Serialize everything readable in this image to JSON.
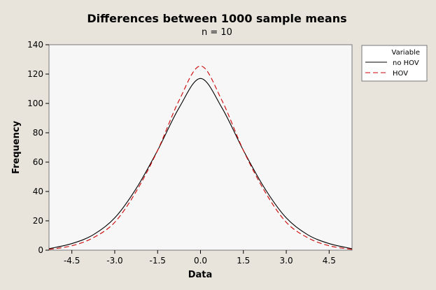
{
  "chart_data": {
    "type": "line",
    "title": "Differences between 1000 sample means",
    "subtitle": "n = 10",
    "xlabel": "Data",
    "ylabel": "Frequency",
    "xlim": [
      -5.3,
      5.3
    ],
    "ylim": [
      0,
      140
    ],
    "x_ticks": [
      -4.5,
      -3.0,
      -1.5,
      0.0,
      1.5,
      3.0,
      4.5
    ],
    "x_tick_labels": [
      "-4.5",
      "-3.0",
      "-1.5",
      "0.0",
      "1.5",
      "3.0",
      "4.5"
    ],
    "y_ticks": [
      0,
      20,
      40,
      60,
      80,
      100,
      120,
      140
    ],
    "y_tick_labels": [
      "0",
      "20",
      "40",
      "60",
      "80",
      "100",
      "120",
      "140"
    ],
    "grid": false,
    "legend": {
      "title": "Variable",
      "placement": "right-top"
    },
    "series": [
      {
        "name": "no HOV",
        "color": "#000000",
        "dash": "solid",
        "x": [
          -5.3,
          -4.5,
          -3.75,
          -3.0,
          -2.25,
          -1.5,
          -0.75,
          0.0,
          0.75,
          1.5,
          2.25,
          3.0,
          3.75,
          4.5,
          5.3
        ],
        "y": [
          1,
          4.5,
          10.5,
          22,
          42,
          68,
          97,
          117,
          97,
          68,
          42,
          22,
          10.5,
          4.5,
          1
        ]
      },
      {
        "name": "HOV",
        "color": "#cc0000",
        "dash": "dashed",
        "x": [
          -5.3,
          -4.5,
          -3.75,
          -3.0,
          -2.25,
          -1.5,
          -0.75,
          0.0,
          0.75,
          1.5,
          2.25,
          3.0,
          3.75,
          4.5,
          5.3
        ],
        "y": [
          0.5,
          3,
          8.5,
          19,
          40,
          68,
          102,
          125.5,
          102,
          68,
          40,
          19,
          8.5,
          3,
          0.5
        ]
      }
    ]
  }
}
